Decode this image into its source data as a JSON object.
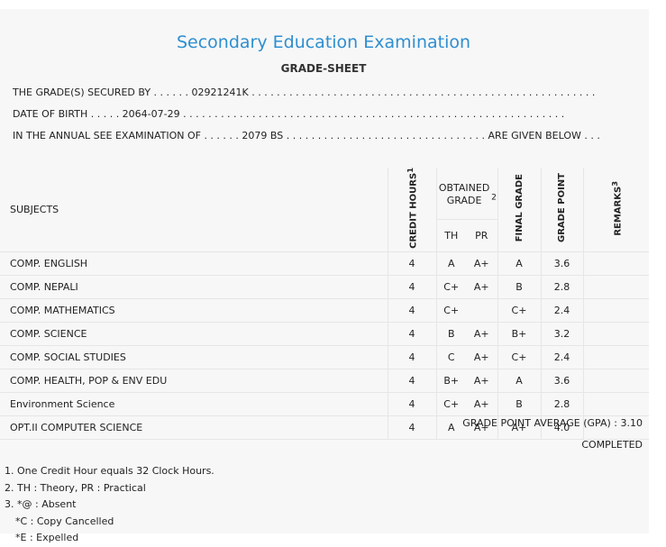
{
  "header": {
    "title": "Secondary Education Examination",
    "subtitle": "GRADE-SHEET"
  },
  "info": {
    "grades_secured_by": "THE GRADE(S) SECURED BY . . . . . . 02921241K . . . . . . . . . . . . . . . . . . . . . . . . . . . . . . . . . . . . . . . . . . . . . . . . . . . . . . .",
    "date_of_birth": "DATE OF BIRTH . . . . . 2064-07-29 . . . . . . . . . . . . . . . . . . . . . . . . . . . . . . . . . . . . . . . . . . . . . . . . . . . . . . . . . . . . .",
    "annual_exam": "IN THE ANNUAL SEE EXAMINATION OF . . . . . . 2079 BS . . . . . . . . . . . . . . . . . . . . . . . . . . . . . . . . ARE GIVEN BELOW . . ."
  },
  "table": {
    "headers": {
      "subjects": "SUBJECTS",
      "credit_hours": "CREDIT HOURS",
      "credit_hours_sup": "1",
      "obtained_grade": "OBTAINED GRADE",
      "obtained_grade_sup": "2",
      "th": "TH",
      "pr": "PR",
      "final_grade": "FINAL GRADE",
      "grade_point": "GRADE POINT",
      "remarks": "REMARKS",
      "remarks_sup": "3"
    },
    "rows": [
      {
        "subject": "COMP. ENGLISH",
        "credit": "4",
        "th": "A",
        "pr": "A+",
        "final": "A",
        "gp": "3.6",
        "remarks": ""
      },
      {
        "subject": "COMP. NEPALI",
        "credit": "4",
        "th": "C+",
        "pr": "A+",
        "final": "B",
        "gp": "2.8",
        "remarks": ""
      },
      {
        "subject": "COMP. MATHEMATICS",
        "credit": "4",
        "th": "C+",
        "pr": "",
        "final": "C+",
        "gp": "2.4",
        "remarks": ""
      },
      {
        "subject": "COMP. SCIENCE",
        "credit": "4",
        "th": "B",
        "pr": "A+",
        "final": "B+",
        "gp": "3.2",
        "remarks": ""
      },
      {
        "subject": "COMP. SOCIAL STUDIES",
        "credit": "4",
        "th": "C",
        "pr": "A+",
        "final": "C+",
        "gp": "2.4",
        "remarks": ""
      },
      {
        "subject": "COMP. HEALTH, POP & ENV EDU",
        "credit": "4",
        "th": "B+",
        "pr": "A+",
        "final": "A",
        "gp": "3.6",
        "remarks": ""
      },
      {
        "subject": "Environment Science",
        "credit": "4",
        "th": "C+",
        "pr": "A+",
        "final": "B",
        "gp": "2.8",
        "remarks": ""
      },
      {
        "subject": "OPT.II COMPUTER SCIENCE",
        "credit": "4",
        "th": "A",
        "pr": "A+",
        "final": "A+",
        "gp": "4.0",
        "remarks": ""
      }
    ]
  },
  "summary": {
    "gpa": "GRADE POINT AVERAGE (GPA) : 3.10",
    "status": "COMPLETED"
  },
  "notes": [
    "1. One Credit Hour equals 32 Clock Hours.",
    "2. TH : Theory, PR : Practical",
    "3. *@ : Absent",
    "   *C : Copy Cancelled",
    "   *E : Expelled"
  ]
}
